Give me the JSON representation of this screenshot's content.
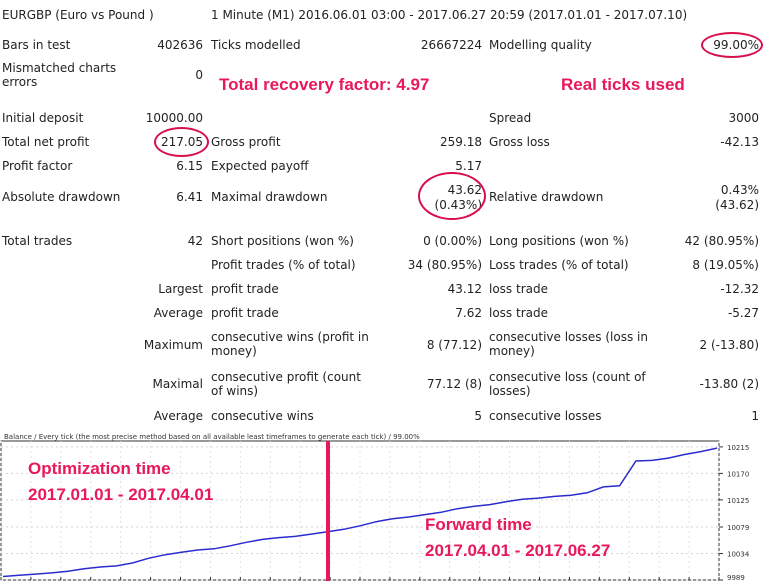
{
  "header": {
    "symbol": "EURGBP (Euro vs Pound )",
    "period": "1 Minute (M1) 2016.06.01 03:00 - 2017.06.27 20:59 (2017.01.01 - 2017.07.10)"
  },
  "stats": {
    "bars_label": "Bars in test",
    "bars_value": "402636",
    "ticks_label": "Ticks modelled",
    "ticks_value": "26667224",
    "quality_label": "Modelling quality",
    "quality_value": "99.00%",
    "mismatch_label": "Mismatched charts errors",
    "mismatch_value": "0",
    "deposit_label": "Initial deposit",
    "deposit_value": "10000.00",
    "spread_label": "Spread",
    "spread_value": "3000",
    "net_profit_label": "Total net profit",
    "net_profit_value": "217.05",
    "gross_profit_label": "Gross profit",
    "gross_profit_value": "259.18",
    "gross_loss_label": "Gross loss",
    "gross_loss_value": "-42.13",
    "profit_factor_label": "Profit factor",
    "profit_factor_value": "6.15",
    "payoff_label": "Expected payoff",
    "payoff_value": "5.17",
    "abs_dd_label": "Absolute drawdown",
    "abs_dd_value": "6.41",
    "max_dd_label": "Maximal drawdown",
    "max_dd_value_1": "43.62",
    "max_dd_value_2": "(0.43%)",
    "rel_dd_label": "Relative drawdown",
    "rel_dd_value_1": "0.43%",
    "rel_dd_value_2": "(43.62)",
    "total_trades_label": "Total trades",
    "total_trades_value": "42",
    "short_label": "Short positions (won %)",
    "short_value": "0 (0.00%)",
    "long_label": "Long positions (won %)",
    "long_value": "42 (80.95%)",
    "profit_trades_label": "Profit trades (% of total)",
    "profit_trades_value": "34 (80.95%)",
    "loss_trades_label": "Loss trades (% of total)",
    "loss_trades_value": "8 (19.05%)",
    "largest_label": "Largest",
    "largest_profit_label": "profit trade",
    "largest_profit_value": "43.12",
    "largest_loss_label": "loss trade",
    "largest_loss_value": "-12.32",
    "average_label": "Average",
    "average_profit_label": "profit trade",
    "average_profit_value": "7.62",
    "average_loss_label": "loss trade",
    "average_loss_value": "-5.27",
    "maximum_label": "Maximum",
    "max_wins_label": "consecutive wins (profit in money)",
    "max_wins_value": "8 (77.12)",
    "max_losses_label": "consecutive losses (loss in money)",
    "max_losses_value": "2 (-13.80)",
    "maximal_label": "Maximal",
    "maximal_profit_label": "consecutive profit (count of wins)",
    "maximal_profit_value": "77.12 (8)",
    "maximal_loss_label": "consecutive loss (count of losses)",
    "maximal_loss_value": "-13.80 (2)",
    "avg_label": "Average",
    "avg_wins_label": "consecutive wins",
    "avg_wins_value": "5",
    "avg_losses_label": "consecutive losses",
    "avg_losses_value": "1"
  },
  "annotations": {
    "recovery": "Total recovery factor: 4.97",
    "ticks": "Real ticks used",
    "optimization_1": "Optimization time",
    "optimization_2": "2017.01.01 - 2017.04.01",
    "forward_1": "Forward time",
    "forward_2": "2017.04.01 - 2017.06.27"
  },
  "colors": {
    "annotation": "#e8185a",
    "balance_line": "#2b2bd0",
    "divider": "#e8185a"
  },
  "chart_data": {
    "type": "line",
    "title": "Balance / Every tick (the most precise method based on all available least timeframes to generate each tick) / 99.00%",
    "y_ticks": [
      "10215",
      "10170",
      "10125",
      "10079",
      "10034",
      "9989"
    ],
    "ylim": [
      9989,
      10225
    ],
    "grid": true,
    "series": [
      {
        "values": [
          9995,
          9997,
          9999,
          10001,
          10004,
          10008,
          10011,
          10013,
          10018,
          10026,
          10032,
          10036,
          10040,
          10042,
          10047,
          10053,
          10058,
          10061,
          10063,
          10067,
          10071,
          10075,
          10081,
          10088,
          10093,
          10096,
          10100,
          10104,
          10110,
          10114,
          10117,
          10122,
          10126,
          10128,
          10131,
          10133,
          10137,
          10147,
          10149,
          10191,
          10192,
          10196,
          10202,
          10207,
          10213
        ]
      }
    ]
  }
}
